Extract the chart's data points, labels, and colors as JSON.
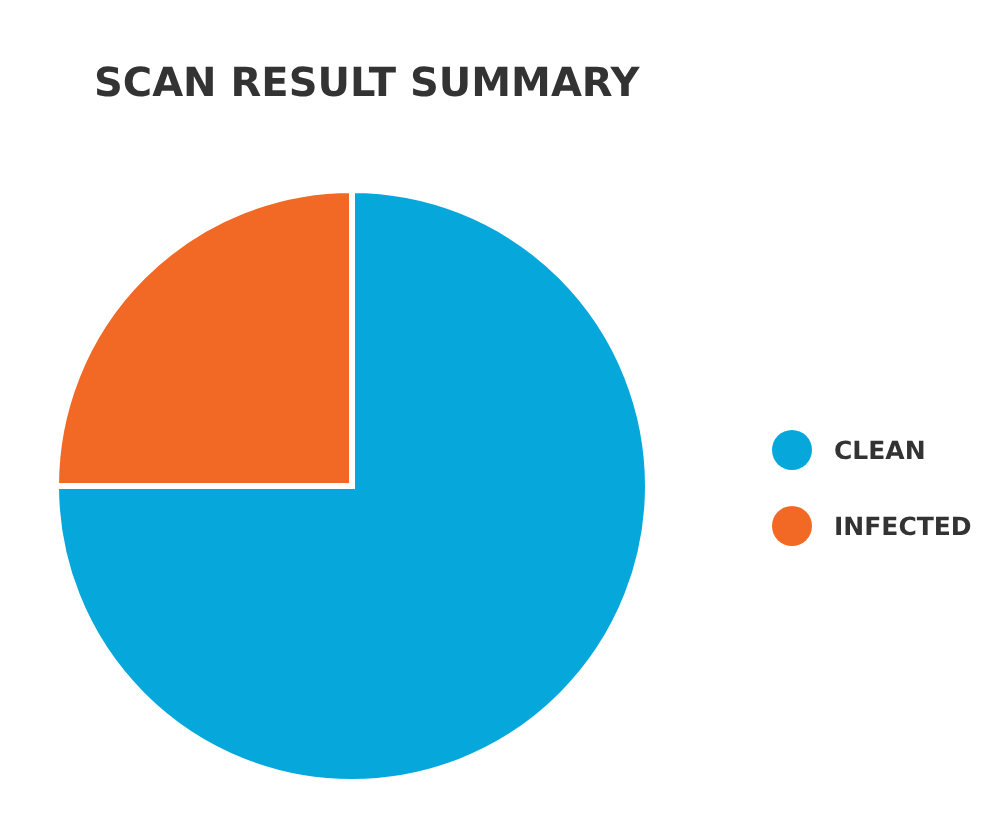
{
  "chart_data": {
    "type": "pie",
    "title": "SCAN RESULT SUMMARY",
    "categories": [
      "CLEAN",
      "INFECTED"
    ],
    "values": [
      75,
      25
    ],
    "colors": [
      "#06a8dc",
      "#f16924"
    ],
    "legend": "right"
  }
}
